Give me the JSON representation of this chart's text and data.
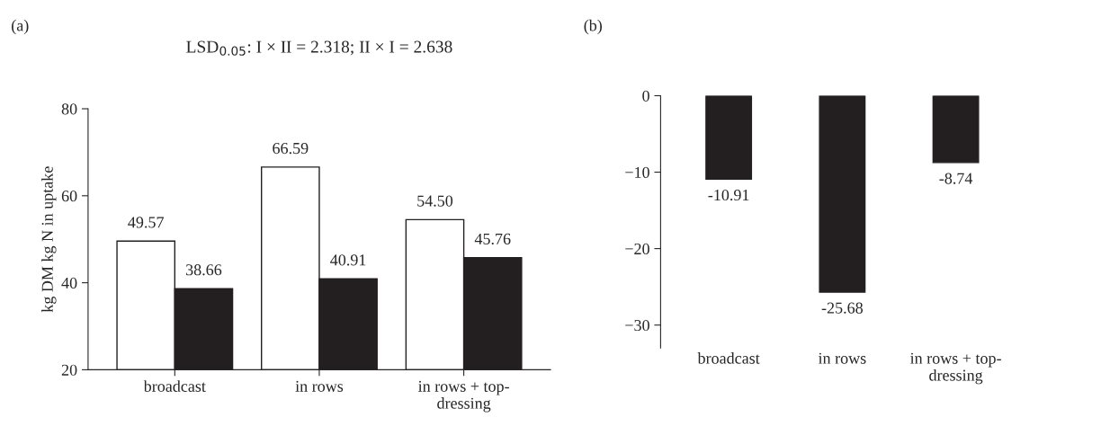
{
  "chart_data": [
    {
      "type": "bar",
      "title": "(a)",
      "subtitle": "LSD$_{0.05}$: I × II = 2.318; II × I = 2.638",
      "ylabel": "kg DM kg N in uptake",
      "categories": [
        "broadcast",
        "in rows",
        "in rows + top-\ndressing"
      ],
      "series": [
        {
          "color": "#ffffff",
          "values": [
            49.57,
            66.59,
            54.5
          ]
        },
        {
          "color": "#231f20",
          "values": [
            38.66,
            40.91,
            45.76
          ]
        }
      ],
      "value_labels": [
        [
          "49.57",
          "66.59",
          "54.50"
        ],
        [
          "38.66",
          "40.91",
          "45.76"
        ]
      ],
      "ylim": [
        20,
        80
      ],
      "yticks": [
        20,
        40,
        60,
        80
      ],
      "grid": false
    },
    {
      "type": "bar",
      "title": "(b)",
      "categories": [
        "broadcast",
        "in rows",
        "in rows + top-\ndressing"
      ],
      "series": [
        {
          "color": "#231f20",
          "values": [
            -10.91,
            -25.68,
            -8.74
          ]
        }
      ],
      "value_labels": [
        [
          "-10.91",
          "-25.68",
          "-8.74"
        ]
      ],
      "ylim": [
        -33,
        0
      ],
      "yticks": [
        0,
        {
          "value": -10,
          "label": "−10"
        },
        {
          "value": -20,
          "label": "−20"
        },
        {
          "value": -30,
          "label": "−30"
        }
      ],
      "grid": false
    }
  ]
}
